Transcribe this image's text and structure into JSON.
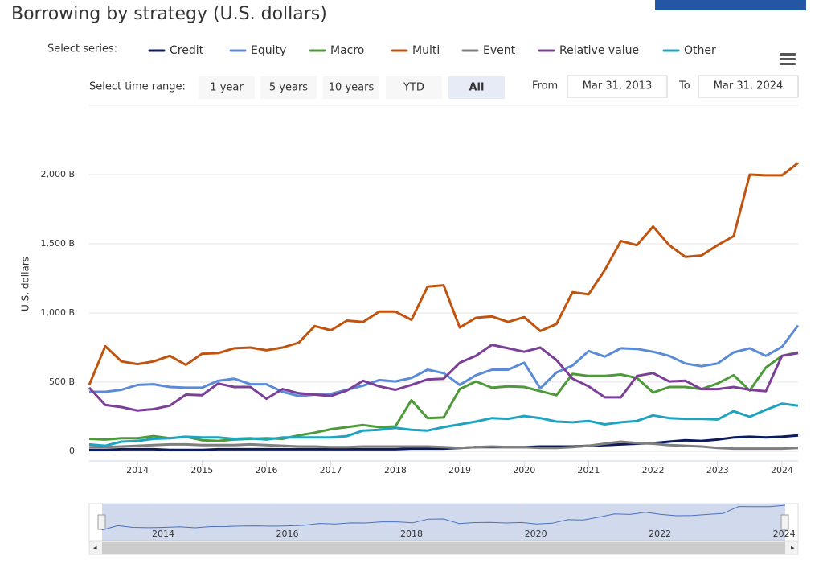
{
  "chart_data": {
    "type": "line",
    "title": "Borrowing by strategy (U.S. dollars)",
    "series_label": "Select series:",
    "range_selector": {
      "label": "Select time range:",
      "buttons": [
        "1 year",
        "5 years",
        "10 years",
        "YTD",
        "All"
      ],
      "selected": 4,
      "from_label": "From",
      "from": "Mar 31, 2013",
      "to_label": "To",
      "to": "Mar 31, 2024"
    },
    "ylabel": "U.S. dollars",
    "xlim": [
      2013.25,
      2024.25
    ],
    "xticks": [
      2014,
      2015,
      2016,
      2017,
      2018,
      2019,
      2020,
      2021,
      2022,
      2023,
      2024
    ],
    "ylim": [
      0,
      2500
    ],
    "yticks": [
      0,
      {
        "value": 500,
        "label": "500 B"
      },
      {
        "value": 1000,
        "label": "1,000 B"
      },
      {
        "value": 1500,
        "label": "1,500 B"
      },
      {
        "value": 2000,
        "label": "2,000 B"
      }
    ],
    "grid": true,
    "navigator_xticks": [
      2014,
      2016,
      2018,
      2020,
      2022,
      2024
    ],
    "x": [
      2013.25,
      2013.5,
      2013.75,
      2014,
      2014.25,
      2014.5,
      2014.75,
      2015,
      2015.25,
      2015.5,
      2015.75,
      2016,
      2016.25,
      2016.5,
      2016.75,
      2017,
      2017.25,
      2017.5,
      2017.75,
      2018,
      2018.25,
      2018.5,
      2018.75,
      2019,
      2019.25,
      2019.5,
      2019.75,
      2020,
      2020.25,
      2020.5,
      2020.75,
      2021,
      2021.25,
      2021.5,
      2021.75,
      2022,
      2022.25,
      2022.5,
      2022.75,
      2023,
      2023.25,
      2023.5,
      2023.75,
      2024,
      2024.25
    ],
    "series": [
      {
        "name": "Credit",
        "color": "#0d1b5e",
        "values": [
          10,
          10,
          15,
          15,
          15,
          10,
          10,
          10,
          15,
          15,
          15,
          15,
          15,
          15,
          15,
          15,
          15,
          15,
          15,
          15,
          20,
          20,
          20,
          25,
          30,
          30,
          30,
          30,
          35,
          35,
          35,
          40,
          45,
          50,
          55,
          60,
          70,
          80,
          75,
          85,
          100,
          105,
          100,
          105,
          115
        ]
      },
      {
        "name": "Equity",
        "color": "#5b8bd6",
        "values": [
          430,
          430,
          445,
          480,
          485,
          465,
          460,
          460,
          510,
          525,
          485,
          485,
          430,
          400,
          410,
          415,
          445,
          475,
          515,
          505,
          530,
          590,
          565,
          480,
          550,
          590,
          590,
          640,
          455,
          570,
          620,
          725,
          685,
          745,
          740,
          720,
          690,
          635,
          615,
          635,
          715,
          745,
          690,
          755,
          910
        ]
      },
      {
        "name": "Macro",
        "color": "#4e9a3a",
        "values": [
          90,
          85,
          95,
          95,
          110,
          95,
          105,
          80,
          75,
          85,
          90,
          95,
          90,
          115,
          135,
          160,
          175,
          190,
          175,
          180,
          370,
          240,
          245,
          450,
          505,
          460,
          470,
          465,
          435,
          405,
          560,
          545,
          545,
          555,
          530,
          425,
          465,
          465,
          450,
          490,
          550,
          440,
          605,
          690,
          715
        ]
      },
      {
        "name": "Multi",
        "color": "#c0540e",
        "values": [
          480,
          760,
          650,
          630,
          650,
          690,
          625,
          705,
          710,
          745,
          750,
          730,
          750,
          785,
          905,
          875,
          945,
          935,
          1010,
          1010,
          950,
          1190,
          1200,
          895,
          965,
          975,
          935,
          970,
          870,
          920,
          1150,
          1135,
          1310,
          1520,
          1490,
          1625,
          1490,
          1405,
          1415,
          1490,
          1555,
          2000,
          1995,
          1995,
          2085
        ]
      },
      {
        "name": "Event",
        "color": "#7f7f7f",
        "values": [
          30,
          30,
          35,
          40,
          45,
          50,
          50,
          45,
          45,
          45,
          50,
          45,
          40,
          35,
          35,
          30,
          30,
          35,
          35,
          35,
          35,
          35,
          30,
          25,
          30,
          35,
          30,
          30,
          25,
          25,
          30,
          40,
          55,
          70,
          60,
          55,
          45,
          40,
          35,
          25,
          20,
          20,
          20,
          20,
          25
        ]
      },
      {
        "name": "Relative value",
        "color": "#7b3f98",
        "values": [
          460,
          335,
          320,
          295,
          305,
          330,
          410,
          405,
          490,
          465,
          465,
          380,
          450,
          420,
          410,
          400,
          440,
          510,
          470,
          445,
          480,
          520,
          525,
          640,
          690,
          770,
          745,
          720,
          750,
          660,
          525,
          470,
          390,
          390,
          545,
          565,
          505,
          510,
          450,
          450,
          465,
          445,
          435,
          690,
          710
        ]
      },
      {
        "name": "Other",
        "color": "#1ea4c0",
        "values": [
          50,
          40,
          70,
          75,
          90,
          95,
          105,
          100,
          100,
          90,
          95,
          85,
          100,
          100,
          100,
          100,
          110,
          150,
          155,
          170,
          155,
          150,
          175,
          195,
          215,
          240,
          235,
          255,
          240,
          215,
          210,
          220,
          195,
          210,
          220,
          260,
          240,
          235,
          235,
          230,
          290,
          250,
          300,
          345,
          330
        ]
      }
    ]
  }
}
